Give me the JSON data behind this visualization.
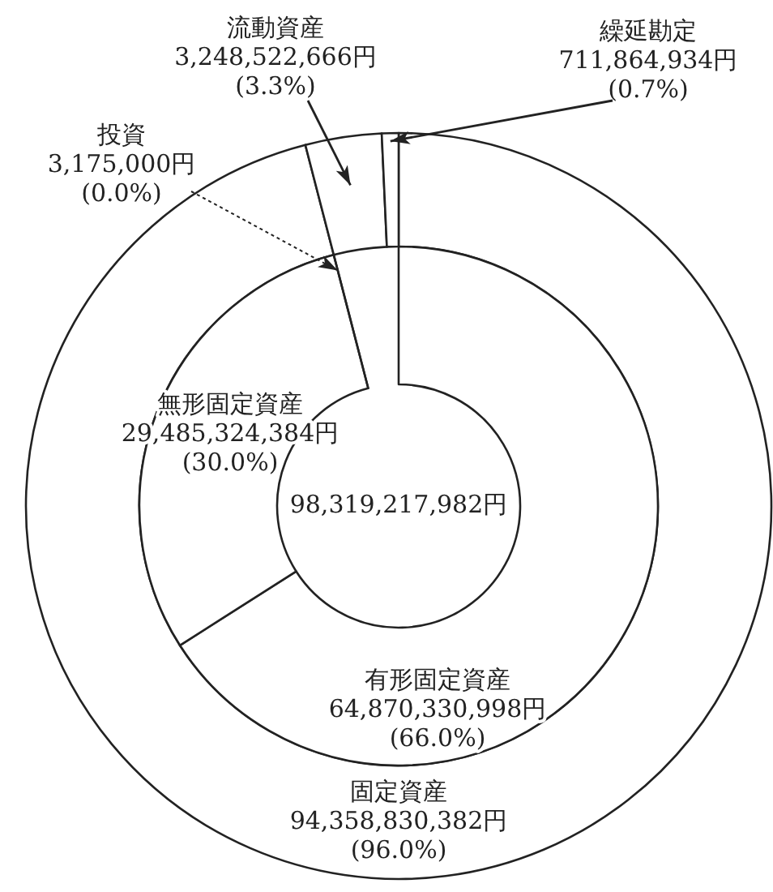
{
  "chart_data": [
    {
      "type": "donut",
      "categories": [
        "固定資産",
        "流動資産",
        "繰延勘定"
      ],
      "values": [
        94358830382,
        3248522666,
        711864934
      ],
      "colors": [
        "#ffffff",
        "#ffffff",
        "#ffffff"
      ],
      "value_labels": [
        "94,358,830,382円\n(96.0%)",
        "3,248,522,666円\n(3.3%)",
        "711,864,934円\n(0.7%)"
      ]
    },
    {
      "type": "donut",
      "categories": [
        "有形固定資産",
        "無形固定資産",
        "投資"
      ],
      "values": [
        64870330998,
        29485324384,
        3175000
      ],
      "colors": [
        "#ffffff",
        "#ffffff",
        "#ffffff"
      ],
      "value_labels": [
        "64,870,330,998円\n(66.0%)",
        "29,485,324,384円\n(30.0%)",
        "3,175,000円\n(0.0%)"
      ],
      "annotations": [
        "98,319,217,982円"
      ]
    }
  ]
}
